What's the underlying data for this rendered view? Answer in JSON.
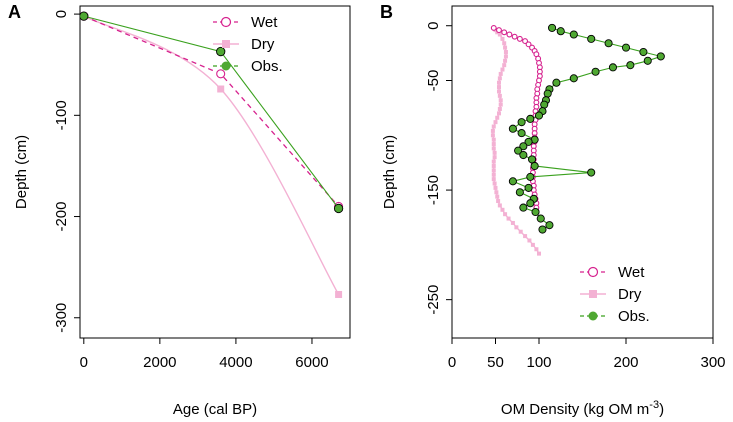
{
  "colors": {
    "wet": "#d6218e",
    "dry": "#f3b1d3",
    "obs_line": "#3aa11e",
    "obs_fill": "#4fa832",
    "axis": "#000000"
  },
  "chart_data": [
    {
      "panel": "A",
      "type": "line",
      "xlabel": "Age (cal BP)",
      "ylabel": "Depth (cm)",
      "xlim": [
        -100,
        7000
      ],
      "ylim": [
        -320,
        8
      ],
      "xticks": [
        0,
        2000,
        4000,
        6000
      ],
      "yticks": [
        0,
        -100,
        -200,
        -300
      ],
      "legend_position": "top-right",
      "series": [
        {
          "name": "Wet",
          "style": "dashed-open-circle",
          "x": [
            0,
            3600,
            6700
          ],
          "y": [
            -2,
            -59,
            -190
          ]
        },
        {
          "name": "Dry",
          "style": "solid-square-smooth",
          "x": [
            0,
            3600,
            6700
          ],
          "y": [
            -2,
            -74,
            -277
          ]
        },
        {
          "name": "Obs.",
          "style": "solid-filled-circle",
          "x": [
            0,
            3600,
            6700
          ],
          "y": [
            -2,
            -37,
            -192
          ]
        }
      ]
    },
    {
      "panel": "B",
      "type": "line",
      "xlabel": "OM Density (kg OM m",
      "xlabel_sup": "-3",
      "xlabel_end": ")",
      "ylabel": "Depth (cm)",
      "xlim": [
        0,
        300
      ],
      "ylim": [
        -285,
        18
      ],
      "xticks": [
        0,
        50,
        100,
        200,
        300
      ],
      "yticks": [
        0,
        -50,
        -150,
        -250
      ],
      "legend_position": "bottom-right",
      "series": [
        {
          "name": "Wet",
          "style": "dashed-open-circle",
          "x": [
            48,
            54,
            60,
            66,
            72,
            78,
            84,
            88,
            92,
            95,
            97,
            99,
            100,
            101,
            101,
            101,
            100,
            99,
            98,
            98,
            97,
            97,
            97,
            96,
            96,
            96,
            95,
            95,
            95,
            95,
            95,
            94,
            94,
            94,
            94,
            94,
            93,
            93,
            93,
            93,
            94,
            94,
            95,
            96,
            97,
            97
          ],
          "y": [
            -2,
            -4,
            -6,
            -8,
            -10,
            -12,
            -14,
            -17,
            -20,
            -23,
            -26,
            -30,
            -34,
            -38,
            -42,
            -46,
            -50,
            -54,
            -58,
            -62,
            -66,
            -70,
            -74,
            -78,
            -82,
            -86,
            -90,
            -94,
            -98,
            -102,
            -106,
            -110,
            -114,
            -118,
            -122,
            -126,
            -130,
            -134,
            -138,
            -142,
            -146,
            -150,
            -154,
            -158,
            -162,
            -166
          ]
        },
        {
          "name": "Dry",
          "style": "solid-square",
          "x": [
            48,
            50,
            52,
            55,
            58,
            60,
            61,
            62,
            62,
            61,
            60,
            58,
            56,
            55,
            54,
            54,
            54,
            55,
            56,
            56,
            55,
            54,
            52,
            50,
            48,
            47,
            47,
            48,
            48,
            48,
            49,
            49,
            48,
            48,
            48,
            48,
            48,
            49,
            50,
            51,
            52,
            53,
            55,
            58,
            61,
            65,
            70,
            74,
            79,
            84,
            89,
            93,
            97,
            100
          ],
          "y": [
            -2,
            -4,
            -6,
            -8,
            -12,
            -16,
            -20,
            -24,
            -28,
            -32,
            -36,
            -40,
            -44,
            -48,
            -52,
            -56,
            -60,
            -64,
            -68,
            -72,
            -76,
            -80,
            -84,
            -88,
            -92,
            -96,
            -100,
            -104,
            -108,
            -112,
            -116,
            -120,
            -124,
            -128,
            -132,
            -136,
            -140,
            -144,
            -148,
            -152,
            -156,
            -160,
            -164,
            -168,
            -172,
            -176,
            -180,
            -184,
            -188,
            -192,
            -196,
            -200,
            -204,
            -208
          ]
        },
        {
          "name": "Obs.",
          "style": "solid-filled-circle",
          "x": [
            115,
            125,
            140,
            160,
            180,
            200,
            220,
            240,
            225,
            205,
            185,
            165,
            140,
            120,
            112,
            110,
            108,
            106,
            104,
            100,
            90,
            80,
            70,
            80,
            95,
            88,
            82,
            76,
            82,
            92,
            95,
            160,
            90,
            70,
            88,
            78,
            94,
            90,
            82,
            96,
            102,
            112,
            104
          ],
          "y": [
            -2,
            -5,
            -8,
            -12,
            -16,
            -20,
            -24,
            -28,
            -32,
            -36,
            -38,
            -42,
            -48,
            -52,
            -58,
            -62,
            -68,
            -72,
            -78,
            -82,
            -85,
            -88,
            -94,
            -98,
            -104,
            -106,
            -110,
            -114,
            -118,
            -122,
            -128,
            -134,
            -138,
            -142,
            -148,
            -152,
            -158,
            -162,
            -166,
            -170,
            -176,
            -182,
            -186
          ]
        }
      ]
    }
  ]
}
